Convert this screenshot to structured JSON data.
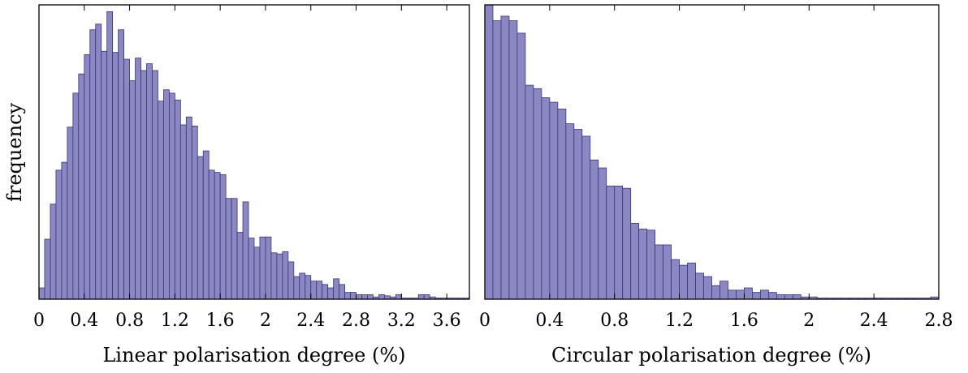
{
  "ylabel": "frequency",
  "bar_color": "#8b87c2",
  "bar_edge_color": "#3a3577",
  "chart_data": [
    {
      "type": "bar",
      "title": "",
      "xlabel": "Linear polarisation degree (%)",
      "ylabel": "frequency",
      "xlim": [
        0,
        3.8
      ],
      "ylim": [
        0,
        260
      ],
      "grid": false,
      "bin_width": 0.05,
      "x_tick_labels": [
        "0",
        "0.4",
        "0.8",
        "1.2",
        "1.6",
        "2",
        "2.4",
        "2.8",
        "3.2",
        "3.6"
      ],
      "x_ticks": [
        0,
        0.4,
        0.8,
        1.2,
        1.6,
        2.0,
        2.4,
        2.8,
        3.2,
        3.6
      ],
      "bin_starts": [
        0.0,
        0.05,
        0.1,
        0.15,
        0.2,
        0.25,
        0.3,
        0.35,
        0.4,
        0.45,
        0.5,
        0.55,
        0.6,
        0.65,
        0.7,
        0.75,
        0.8,
        0.85,
        0.9,
        0.95,
        1.0,
        1.05,
        1.1,
        1.15,
        1.2,
        1.25,
        1.3,
        1.35,
        1.4,
        1.45,
        1.5,
        1.55,
        1.6,
        1.65,
        1.7,
        1.75,
        1.8,
        1.85,
        1.9,
        1.95,
        2.0,
        2.05,
        2.1,
        2.15,
        2.2,
        2.25,
        2.3,
        2.35,
        2.4,
        2.45,
        2.5,
        2.55,
        2.6,
        2.65,
        2.7,
        2.75,
        2.8,
        2.85,
        2.9,
        2.95,
        3.0,
        3.05,
        3.1,
        3.15,
        3.2,
        3.25,
        3.3,
        3.35,
        3.4,
        3.45,
        3.5,
        3.55,
        3.6,
        3.65,
        3.7,
        3.75
      ],
      "values": [
        10,
        53,
        84,
        114,
        121,
        152,
        182,
        199,
        216,
        238,
        243,
        219,
        254,
        218,
        238,
        212,
        193,
        213,
        202,
        208,
        202,
        175,
        185,
        182,
        176,
        154,
        161,
        153,
        126,
        131,
        114,
        112,
        110,
        89,
        89,
        59,
        86,
        54,
        46,
        55,
        55,
        41,
        40,
        42,
        33,
        20,
        23,
        21,
        16,
        16,
        13,
        10,
        18,
        13,
        6,
        6,
        4,
        4,
        4,
        2,
        4,
        3,
        2,
        4,
        1,
        1,
        1,
        4,
        4,
        2,
        1,
        1,
        1,
        1,
        1,
        1
      ]
    },
    {
      "type": "bar",
      "title": "",
      "xlabel": "Circular polarisation degree (%)",
      "xlim": [
        0,
        2.8
      ],
      "ylim": [
        0,
        260
      ],
      "grid": false,
      "bin_width": 0.05,
      "x_tick_labels": [
        "0",
        "0.4",
        "0.8",
        "1.2",
        "1.6",
        "2",
        "2.4",
        "2.8"
      ],
      "x_ticks": [
        0,
        0.4,
        0.8,
        1.2,
        1.6,
        2.0,
        2.4,
        2.8
      ],
      "bin_starts": [
        0.0,
        0.05,
        0.1,
        0.15,
        0.2,
        0.25,
        0.3,
        0.35,
        0.4,
        0.45,
        0.5,
        0.55,
        0.6,
        0.65,
        0.7,
        0.75,
        0.8,
        0.85,
        0.9,
        0.95,
        1.0,
        1.05,
        1.1,
        1.15,
        1.2,
        1.25,
        1.3,
        1.35,
        1.4,
        1.45,
        1.5,
        1.55,
        1.6,
        1.65,
        1.7,
        1.75,
        1.8,
        1.85,
        1.9,
        1.95,
        2.0,
        2.05,
        2.1,
        2.15,
        2.2,
        2.25,
        2.3,
        2.35,
        2.4,
        2.45,
        2.5,
        2.55,
        2.6,
        2.65,
        2.7,
        2.75
      ],
      "values": [
        260,
        246,
        250,
        246,
        235,
        189,
        186,
        178,
        174,
        168,
        155,
        150,
        144,
        123,
        116,
        100,
        100,
        98,
        67,
        62,
        61,
        48,
        48,
        35,
        30,
        32,
        23,
        20,
        12,
        16,
        8,
        8,
        10,
        6,
        8,
        6,
        4,
        4,
        4,
        2,
        2,
        1,
        1,
        1,
        1,
        1,
        1,
        1,
        1,
        1,
        1,
        1,
        1,
        1,
        1,
        2
      ]
    }
  ]
}
